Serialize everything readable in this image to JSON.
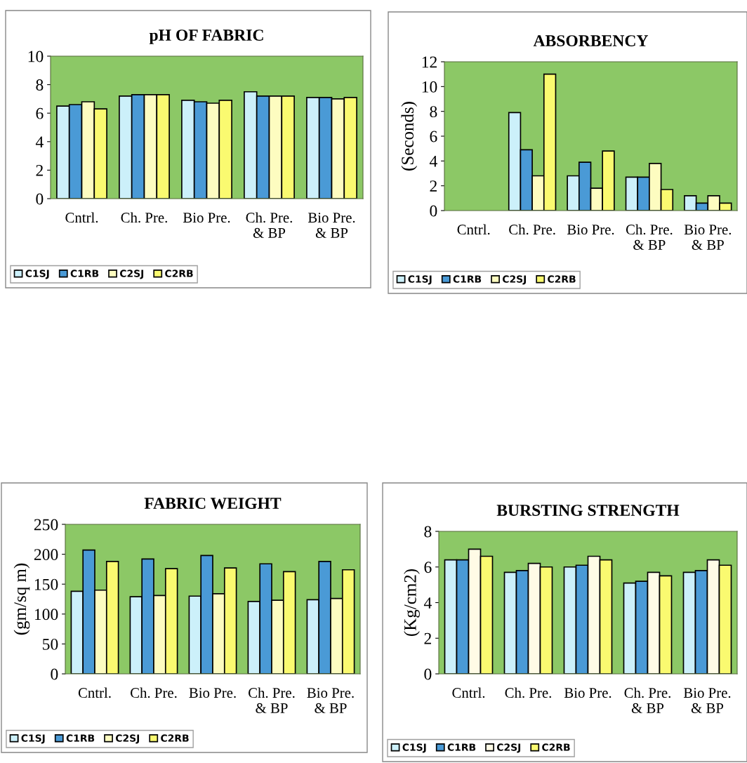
{
  "chart_data": [
    {
      "type": "bar",
      "title": "pH OF FABRIC",
      "categories": [
        "Cntrl.",
        "Ch. Pre.",
        "Bio Pre.",
        "Ch. Pre.\n& BP",
        "Bio Pre.\n& BP"
      ],
      "ylim": [
        0,
        10
      ],
      "yticks": [
        0,
        2,
        4,
        6,
        8,
        10
      ],
      "grid": false,
      "legend": "bottom left",
      "series": [
        {
          "name": "C1SJ",
          "color": "#ccf0fa",
          "values": [
            6.5,
            7.2,
            6.9,
            7.5,
            7.1
          ]
        },
        {
          "name": "C1RB",
          "color": "#4a9ad6",
          "values": [
            6.6,
            7.3,
            6.8,
            7.2,
            7.1
          ]
        },
        {
          "name": "C2SJ",
          "color": "#fdfcc0",
          "values": [
            6.8,
            7.3,
            6.7,
            7.2,
            7.0
          ]
        },
        {
          "name": "C2RB",
          "color": "#fafa70",
          "values": [
            6.3,
            7.3,
            6.9,
            7.2,
            7.1
          ]
        }
      ]
    },
    {
      "type": "bar",
      "title": "ABSORBENCY",
      "ylabel": "(Seconds)",
      "categories": [
        "Cntrl.",
        "Ch. Pre.",
        "Bio Pre.",
        "Ch. Pre.\n& BP",
        "Bio Pre.\n& BP"
      ],
      "ylim": [
        0,
        12
      ],
      "yticks": [
        0,
        2,
        4,
        6,
        8,
        10,
        12
      ],
      "grid": false,
      "legend": "bottom left",
      "series": [
        {
          "name": "C1SJ",
          "color": "#ccf0fa",
          "values": [
            null,
            7.9,
            2.8,
            2.7,
            1.2
          ]
        },
        {
          "name": "C1RB",
          "color": "#4a9ad6",
          "values": [
            null,
            4.9,
            3.9,
            2.7,
            0.6
          ]
        },
        {
          "name": "C2SJ",
          "color": "#fdfcc0",
          "values": [
            null,
            2.8,
            1.8,
            3.8,
            1.2
          ]
        },
        {
          "name": "C2RB",
          "color": "#fafa70",
          "values": [
            null,
            11.0,
            4.8,
            1.7,
            0.6
          ]
        }
      ]
    },
    {
      "type": "bar",
      "title": "FABRIC WEIGHT",
      "ylabel": "(gm/sq m)",
      "categories": [
        "Cntrl.",
        "Ch. Pre.",
        "Bio Pre.",
        "Ch. Pre.\n& BP",
        "Bio Pre.\n& BP"
      ],
      "ylim": [
        0,
        250
      ],
      "yticks": [
        0,
        50,
        100,
        150,
        200,
        250
      ],
      "grid": false,
      "legend": "bottom left",
      "series": [
        {
          "name": "C1SJ",
          "color": "#ccf0fa",
          "values": [
            138,
            129,
            130,
            121,
            124
          ]
        },
        {
          "name": "C1RB",
          "color": "#4a9ad6",
          "values": [
            207,
            192,
            198,
            184,
            188
          ]
        },
        {
          "name": "C2SJ",
          "color": "#fdfcc0",
          "values": [
            140,
            131,
            134,
            123,
            126
          ]
        },
        {
          "name": "C2RB",
          "color": "#fafa70",
          "values": [
            188,
            176,
            177,
            171,
            174
          ]
        }
      ]
    },
    {
      "type": "bar",
      "title": "BURSTING STRENGTH",
      "ylabel": "(Kg/cm2)",
      "categories": [
        "Cntrl.",
        "Ch. Pre.",
        "Bio Pre.",
        "Ch. Pre.\n& BP",
        "Bio Pre.\n& BP"
      ],
      "ylim": [
        0,
        8
      ],
      "yticks": [
        0,
        2,
        4,
        6,
        8
      ],
      "grid": false,
      "legend": "bottom left",
      "series": [
        {
          "name": "C1SJ",
          "color": "#ccf0fa",
          "values": [
            6.4,
            5.7,
            6.0,
            5.1,
            5.7
          ]
        },
        {
          "name": "C1RB",
          "color": "#4a9ad6",
          "values": [
            6.4,
            5.8,
            6.1,
            5.2,
            5.8
          ]
        },
        {
          "name": "C2SJ",
          "color": "#fffbe6",
          "values": [
            7.0,
            6.2,
            6.6,
            5.7,
            6.4
          ]
        },
        {
          "name": "C2RB",
          "color": "#fafa70",
          "values": [
            6.6,
            6.0,
            6.4,
            5.5,
            6.1
          ]
        }
      ]
    }
  ]
}
